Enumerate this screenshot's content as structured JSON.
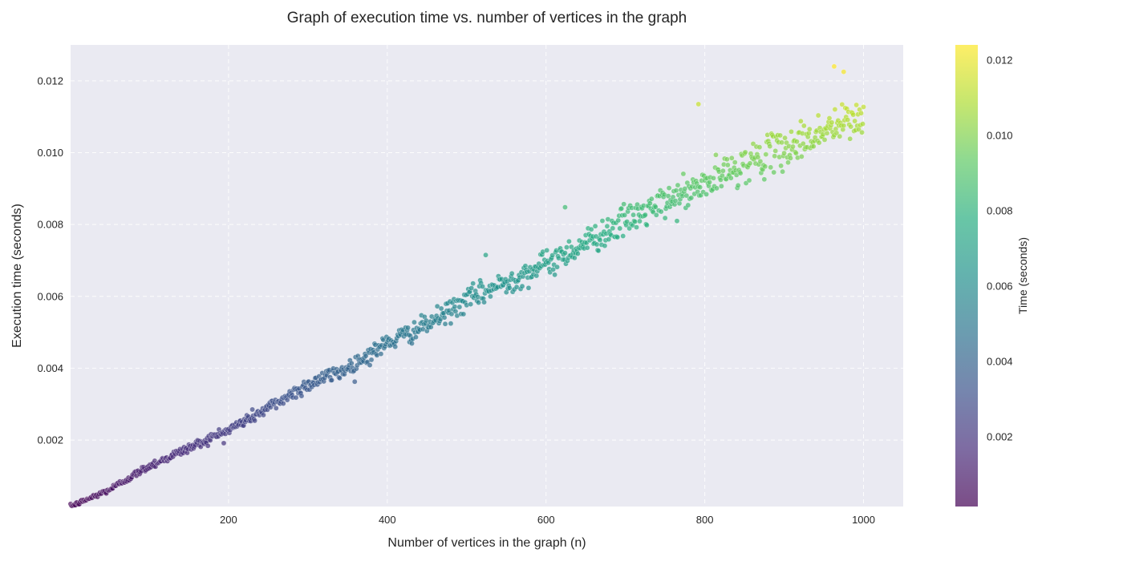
{
  "chart_data": {
    "type": "scatter",
    "title": "Graph of execution time vs. number of vertices in the graph",
    "xlabel": "Number of vertices in the graph (n)",
    "ylabel": "Execution time (seconds)",
    "xlim": [
      1,
      1050
    ],
    "ylim": [
      0.00015,
      0.013
    ],
    "xticks": [
      200,
      400,
      600,
      800,
      1000
    ],
    "xtick_labels": [
      "200",
      "400",
      "600",
      "800",
      "1000"
    ],
    "yticks": [
      0.002,
      0.004,
      0.006,
      0.008,
      0.01,
      0.012
    ],
    "ytick_labels": [
      "0.002",
      "0.004",
      "0.006",
      "0.008",
      "0.010",
      "0.012"
    ],
    "grid": true,
    "colormap": "viridis",
    "colorbar": {
      "label": "Time (seconds)",
      "range": [
        0.00015,
        0.0124
      ],
      "ticks": [
        0.002,
        0.004,
        0.006,
        0.008,
        0.01,
        0.012
      ],
      "tick_labels": [
        "0.002",
        "0.004",
        "0.006",
        "0.008",
        "0.010",
        "0.012"
      ]
    },
    "trend": {
      "description": "points follow y ≈ 4.0e-6·x + 8e-9·x² with noise growing with x",
      "x_range": [
        1,
        1000
      ],
      "n_points": 1000
    },
    "sample_points": [
      {
        "x": 1,
        "y": 0.00015
      },
      {
        "x": 50,
        "y": 0.00062
      },
      {
        "x": 100,
        "y": 0.00128
      },
      {
        "x": 150,
        "y": 0.00178
      },
      {
        "x": 200,
        "y": 0.00228
      },
      {
        "x": 250,
        "y": 0.0029
      },
      {
        "x": 300,
        "y": 0.00355
      },
      {
        "x": 350,
        "y": 0.004
      },
      {
        "x": 400,
        "y": 0.0047
      },
      {
        "x": 450,
        "y": 0.0052
      },
      {
        "x": 500,
        "y": 0.0059
      },
      {
        "x": 550,
        "y": 0.0064
      },
      {
        "x": 600,
        "y": 0.0069
      },
      {
        "x": 650,
        "y": 0.0075
      },
      {
        "x": 700,
        "y": 0.0081
      },
      {
        "x": 750,
        "y": 0.0086
      },
      {
        "x": 800,
        "y": 0.0091
      },
      {
        "x": 850,
        "y": 0.0097
      },
      {
        "x": 900,
        "y": 0.0101
      },
      {
        "x": 950,
        "y": 0.0106
      },
      {
        "x": 1000,
        "y": 0.011
      }
    ],
    "outliers": [
      {
        "x": 792,
        "y": 0.01135
      },
      {
        "x": 963,
        "y": 0.0124
      },
      {
        "x": 975,
        "y": 0.01225
      },
      {
        "x": 524,
        "y": 0.00715
      },
      {
        "x": 624,
        "y": 0.00848
      }
    ]
  },
  "colors": {
    "plot_background": "#eaeaf2",
    "grid": "#ffffff",
    "point_alpha": 0.7
  }
}
